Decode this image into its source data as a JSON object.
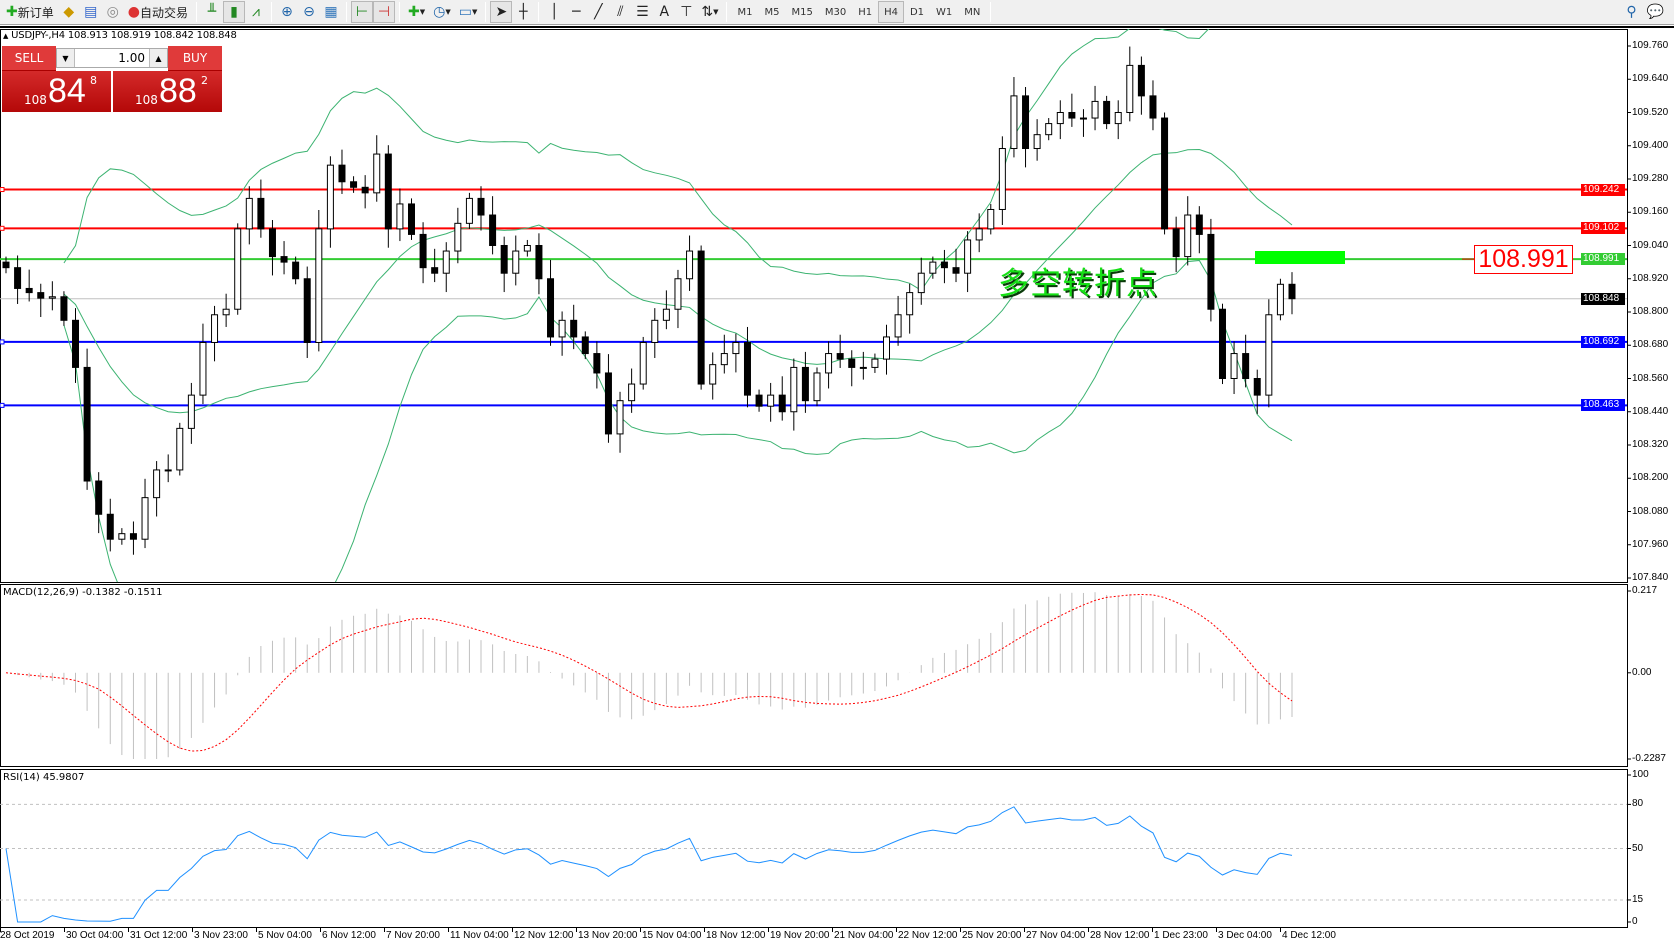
{
  "toolbar": {
    "new_order": "新订单",
    "auto_trading": "自动交易",
    "timeframes": [
      "M1",
      "M5",
      "M15",
      "M30",
      "H1",
      "H4",
      "D1",
      "W1",
      "MN"
    ],
    "active_timeframe": "H4"
  },
  "chart": {
    "symbol_line": "USDJPY-,H4  108.913 108.919 108.842 108.848",
    "annotation_text": "多空转折点",
    "price_label": "108.991",
    "current_price": "108.848"
  },
  "one_click": {
    "sell_label": "SELL",
    "buy_label": "BUY",
    "lot": "1.00",
    "sell_prefix": "108",
    "sell_big": "84",
    "sell_sup": "8",
    "buy_prefix": "108",
    "buy_big": "88",
    "buy_sup": "2"
  },
  "colors": {
    "resistance": "#ff0000",
    "pivot": "#33cc33",
    "support": "#0000ff",
    "bands": "#3cb371",
    "macd_signal": "#ff0000",
    "rsi": "#1e90ff",
    "bull": "#ffffff",
    "bear": "#000000"
  },
  "levels": [
    {
      "price": 109.242,
      "label": "109.242",
      "color": "#ff0000"
    },
    {
      "price": 109.102,
      "label": "109.102",
      "color": "#ff0000"
    },
    {
      "price": 108.991,
      "label": "108.991",
      "color": "#33cc33"
    },
    {
      "price": 108.692,
      "label": "108.692",
      "color": "#0000ff"
    },
    {
      "price": 108.463,
      "label": "108.463",
      "color": "#0000ff"
    }
  ],
  "indicators": {
    "macd_label": "MACD(12,26,9) -0.1382 -0.1511",
    "rsi_label": "RSI(14) 45.9807"
  },
  "chart_data": {
    "type": "candlestick",
    "symbol": "USDJPY-",
    "timeframe": "H4",
    "ylim": [
      107.84,
      109.76
    ],
    "price_ticks": [
      "109.760",
      "109.640",
      "109.520",
      "109.400",
      "109.280",
      "109.160",
      "109.040",
      "108.920",
      "108.800",
      "108.680",
      "108.560",
      "108.440",
      "108.320",
      "108.200",
      "108.080",
      "107.960",
      "107.840"
    ],
    "time_ticks": [
      "28 Oct 2019",
      "30 Oct 04:00",
      "31 Oct 12:00",
      "3 Nov 23:00",
      "5 Nov 04:00",
      "6 Nov 12:00",
      "7 Nov 20:00",
      "11 Nov 04:00",
      "12 Nov 12:00",
      "13 Nov 20:00",
      "15 Nov 04:00",
      "18 Nov 12:00",
      "19 Nov 20:00",
      "21 Nov 04:00",
      "22 Nov 12:00",
      "25 Nov 20:00",
      "27 Nov 04:00",
      "28 Nov 12:00",
      "1 Dec 23:00",
      "3 Dec 04:00",
      "4 Dec 12:00"
    ],
    "close": [
      108.96,
      108.885,
      108.87,
      108.85,
      108.855,
      108.77,
      108.6,
      108.19,
      108.07,
      107.98,
      108.0,
      107.98,
      108.13,
      108.23,
      108.23,
      108.38,
      108.5,
      108.69,
      108.79,
      108.81,
      109.1,
      109.21,
      109.1,
      109.0,
      108.98,
      108.92,
      108.69,
      109.1,
      109.33,
      109.27,
      109.25,
      109.23,
      109.37,
      109.1,
      109.19,
      109.08,
      108.96,
      108.94,
      109.02,
      109.12,
      109.21,
      109.15,
      109.04,
      108.94,
      109.02,
      109.04,
      108.92,
      108.71,
      108.77,
      108.71,
      108.65,
      108.58,
      108.36,
      108.48,
      108.54,
      108.69,
      108.77,
      108.81,
      108.92,
      109.02,
      108.54,
      108.61,
      108.65,
      108.69,
      108.5,
      108.46,
      108.5,
      108.44,
      108.6,
      108.48,
      108.58,
      108.65,
      108.63,
      108.6,
      108.6,
      108.63,
      108.71,
      108.79,
      108.87,
      108.94,
      108.98,
      108.96,
      108.94,
      109.06,
      109.1,
      109.17,
      109.39,
      109.58,
      109.39,
      109.44,
      109.48,
      109.52,
      109.5,
      109.5,
      109.56,
      109.48,
      109.52,
      109.69,
      109.58,
      109.5,
      109.1,
      109.0,
      109.15,
      109.08,
      108.81,
      108.56,
      108.65,
      108.56,
      108.5,
      108.79,
      108.9,
      108.848
    ],
    "macd": {
      "ylim": [
        -0.2287,
        0.217
      ],
      "ticks": [
        "0.217",
        "0.00",
        "-0.2287"
      ]
    },
    "rsi": {
      "ylim": [
        0,
        100
      ],
      "ticks": [
        "100",
        "80",
        "50",
        "15",
        "0"
      ],
      "levels": [
        80,
        50,
        15
      ]
    }
  }
}
